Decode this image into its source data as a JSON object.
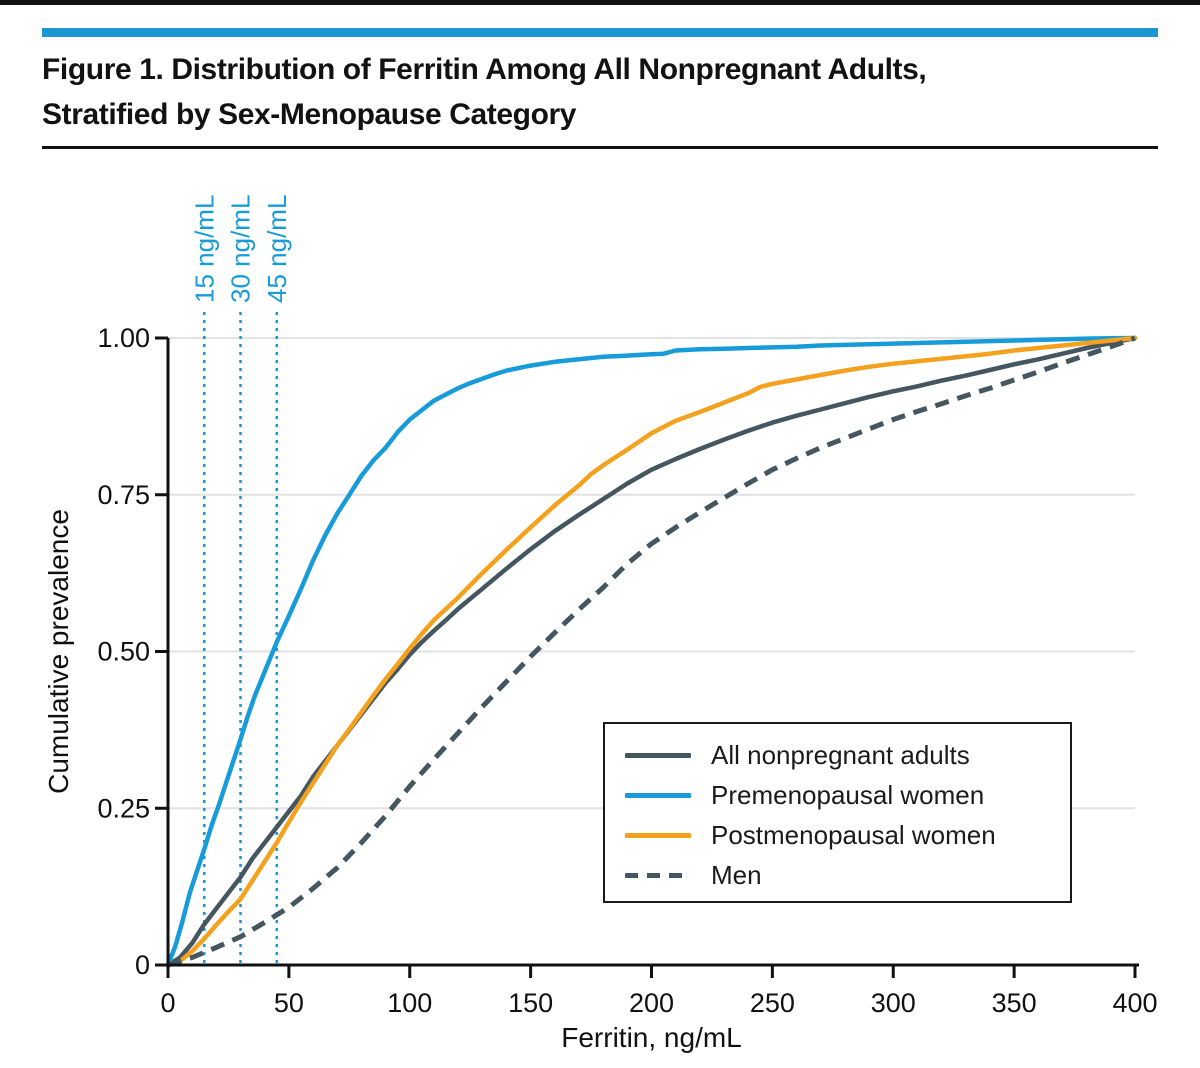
{
  "header": {
    "title_line1": "Figure 1. Distribution of Ferritin Among All Nonpregnant Adults,",
    "title_line2": "Stratified by Sex-Menopause Category"
  },
  "colors": {
    "top_rule": "#121212",
    "accent_bar": "#1B97D1",
    "grid": "#E2E2E2",
    "axis": "#111111",
    "reference_line": "#189CD9"
  },
  "chart_data": {
    "type": "line",
    "title": "Figure 1. Distribution of Ferritin Among All Nonpregnant Adults, Stratified by Sex-Menopause Category",
    "xlabel": "Ferritin, ng/mL",
    "ylabel": "Cumulative prevalence",
    "xlim": [
      0,
      400
    ],
    "ylim": [
      0,
      1.0
    ],
    "x_ticks": [
      0,
      50,
      100,
      150,
      200,
      250,
      300,
      350,
      400
    ],
    "x_tick_labels": [
      "0",
      "50",
      "100",
      "150",
      "200",
      "250",
      "300",
      "350",
      "400"
    ],
    "y_ticks": [
      0,
      0.25,
      0.5,
      0.75,
      1.0
    ],
    "y_tick_labels": [
      "0",
      "0.25",
      "0.50",
      "0.75",
      "1.00"
    ],
    "grid": "horizontal gridlines at y ticks",
    "legend_position": "inside lower right, boxed",
    "reference_lines": [
      {
        "x": 15,
        "label": "15 ng/mL"
      },
      {
        "x": 30,
        "label": "30 ng/mL"
      },
      {
        "x": 45,
        "label": "45 ng/mL"
      }
    ],
    "series": [
      {
        "name": "All nonpregnant adults",
        "color": "#44565F",
        "style": "solid",
        "points": [
          [
            0,
            0
          ],
          [
            5,
            0.012
          ],
          [
            10,
            0.035
          ],
          [
            15,
            0.065
          ],
          [
            20,
            0.09
          ],
          [
            25,
            0.115
          ],
          [
            30,
            0.14
          ],
          [
            35,
            0.17
          ],
          [
            40,
            0.195
          ],
          [
            45,
            0.22
          ],
          [
            50,
            0.245
          ],
          [
            55,
            0.27
          ],
          [
            60,
            0.3
          ],
          [
            65,
            0.325
          ],
          [
            70,
            0.35
          ],
          [
            75,
            0.375
          ],
          [
            80,
            0.4
          ],
          [
            85,
            0.425
          ],
          [
            90,
            0.45
          ],
          [
            95,
            0.472
          ],
          [
            100,
            0.495
          ],
          [
            105,
            0.515
          ],
          [
            110,
            0.533
          ],
          [
            115,
            0.55
          ],
          [
            120,
            0.568
          ],
          [
            130,
            0.6
          ],
          [
            140,
            0.632
          ],
          [
            150,
            0.663
          ],
          [
            160,
            0.692
          ],
          [
            170,
            0.718
          ],
          [
            180,
            0.743
          ],
          [
            190,
            0.768
          ],
          [
            200,
            0.79
          ],
          [
            210,
            0.807
          ],
          [
            220,
            0.823
          ],
          [
            230,
            0.838
          ],
          [
            240,
            0.852
          ],
          [
            250,
            0.865
          ],
          [
            260,
            0.876
          ],
          [
            270,
            0.886
          ],
          [
            280,
            0.896
          ],
          [
            290,
            0.906
          ],
          [
            300,
            0.915
          ],
          [
            310,
            0.923
          ],
          [
            320,
            0.932
          ],
          [
            330,
            0.94
          ],
          [
            340,
            0.949
          ],
          [
            350,
            0.958
          ],
          [
            360,
            0.966
          ],
          [
            370,
            0.975
          ],
          [
            380,
            0.984
          ],
          [
            390,
            0.992
          ],
          [
            400,
            1
          ]
        ]
      },
      {
        "name": "Premenopausal women",
        "color": "#189CD9",
        "style": "solid",
        "points": [
          [
            0,
            0
          ],
          [
            3,
            0.03
          ],
          [
            6,
            0.07
          ],
          [
            9,
            0.115
          ],
          [
            12,
            0.15
          ],
          [
            15,
            0.185
          ],
          [
            18,
            0.222
          ],
          [
            21,
            0.255
          ],
          [
            24,
            0.29
          ],
          [
            27,
            0.325
          ],
          [
            30,
            0.36
          ],
          [
            33,
            0.397
          ],
          [
            36,
            0.43
          ],
          [
            40,
            0.468
          ],
          [
            45,
            0.515
          ],
          [
            50,
            0.557
          ],
          [
            55,
            0.6
          ],
          [
            60,
            0.645
          ],
          [
            65,
            0.685
          ],
          [
            70,
            0.72
          ],
          [
            75,
            0.75
          ],
          [
            80,
            0.78
          ],
          [
            85,
            0.805
          ],
          [
            90,
            0.825
          ],
          [
            95,
            0.85
          ],
          [
            100,
            0.87
          ],
          [
            105,
            0.885
          ],
          [
            110,
            0.9
          ],
          [
            115,
            0.91
          ],
          [
            120,
            0.92
          ],
          [
            125,
            0.928
          ],
          [
            130,
            0.935
          ],
          [
            135,
            0.942
          ],
          [
            140,
            0.948
          ],
          [
            145,
            0.952
          ],
          [
            150,
            0.956
          ],
          [
            160,
            0.962
          ],
          [
            170,
            0.966
          ],
          [
            180,
            0.97
          ],
          [
            190,
            0.972
          ],
          [
            200,
            0.974
          ],
          [
            205,
            0.975
          ],
          [
            210,
            0.98
          ],
          [
            220,
            0.982
          ],
          [
            230,
            0.983
          ],
          [
            240,
            0.984
          ],
          [
            250,
            0.985
          ],
          [
            260,
            0.986
          ],
          [
            270,
            0.988
          ],
          [
            280,
            0.989
          ],
          [
            290,
            0.99
          ],
          [
            300,
            0.991
          ],
          [
            310,
            0.992
          ],
          [
            320,
            0.993
          ],
          [
            330,
            0.994
          ],
          [
            340,
            0.995
          ],
          [
            350,
            0.996
          ],
          [
            360,
            0.997
          ],
          [
            370,
            0.998
          ],
          [
            380,
            0.999
          ],
          [
            390,
            0.9995
          ],
          [
            400,
            1
          ]
        ]
      },
      {
        "name": "Postmenopausal women",
        "color": "#F4A11D",
        "style": "solid",
        "points": [
          [
            0,
            0
          ],
          [
            5,
            0.006
          ],
          [
            10,
            0.022
          ],
          [
            15,
            0.042
          ],
          [
            20,
            0.064
          ],
          [
            25,
            0.085
          ],
          [
            30,
            0.105
          ],
          [
            35,
            0.135
          ],
          [
            40,
            0.165
          ],
          [
            45,
            0.195
          ],
          [
            50,
            0.228
          ],
          [
            55,
            0.26
          ],
          [
            60,
            0.29
          ],
          [
            65,
            0.32
          ],
          [
            70,
            0.35
          ],
          [
            75,
            0.376
          ],
          [
            80,
            0.403
          ],
          [
            85,
            0.43
          ],
          [
            90,
            0.456
          ],
          [
            95,
            0.48
          ],
          [
            100,
            0.505
          ],
          [
            105,
            0.528
          ],
          [
            110,
            0.55
          ],
          [
            115,
            0.568
          ],
          [
            120,
            0.586
          ],
          [
            130,
            0.625
          ],
          [
            140,
            0.662
          ],
          [
            150,
            0.698
          ],
          [
            160,
            0.733
          ],
          [
            170,
            0.765
          ],
          [
            175,
            0.783
          ],
          [
            180,
            0.797
          ],
          [
            190,
            0.822
          ],
          [
            200,
            0.848
          ],
          [
            210,
            0.868
          ],
          [
            220,
            0.882
          ],
          [
            230,
            0.897
          ],
          [
            240,
            0.912
          ],
          [
            245,
            0.922
          ],
          [
            250,
            0.927
          ],
          [
            260,
            0.934
          ],
          [
            270,
            0.941
          ],
          [
            280,
            0.948
          ],
          [
            290,
            0.954
          ],
          [
            300,
            0.959
          ],
          [
            310,
            0.963
          ],
          [
            320,
            0.967
          ],
          [
            330,
            0.971
          ],
          [
            340,
            0.975
          ],
          [
            350,
            0.98
          ],
          [
            360,
            0.984
          ],
          [
            370,
            0.988
          ],
          [
            380,
            0.992
          ],
          [
            390,
            0.996
          ],
          [
            400,
            1
          ]
        ]
      },
      {
        "name": "Men",
        "color": "#44565F",
        "style": "dashed",
        "points": [
          [
            0,
            0
          ],
          [
            10,
            0.012
          ],
          [
            20,
            0.028
          ],
          [
            30,
            0.045
          ],
          [
            40,
            0.068
          ],
          [
            50,
            0.092
          ],
          [
            60,
            0.122
          ],
          [
            70,
            0.155
          ],
          [
            80,
            0.195
          ],
          [
            90,
            0.238
          ],
          [
            100,
            0.285
          ],
          [
            110,
            0.328
          ],
          [
            120,
            0.37
          ],
          [
            130,
            0.412
          ],
          [
            140,
            0.452
          ],
          [
            150,
            0.492
          ],
          [
            160,
            0.53
          ],
          [
            170,
            0.567
          ],
          [
            180,
            0.602
          ],
          [
            190,
            0.64
          ],
          [
            200,
            0.672
          ],
          [
            210,
            0.698
          ],
          [
            220,
            0.722
          ],
          [
            230,
            0.745
          ],
          [
            240,
            0.768
          ],
          [
            250,
            0.79
          ],
          [
            260,
            0.808
          ],
          [
            270,
            0.825
          ],
          [
            280,
            0.84
          ],
          [
            290,
            0.855
          ],
          [
            300,
            0.87
          ],
          [
            310,
            0.883
          ],
          [
            320,
            0.895
          ],
          [
            330,
            0.908
          ],
          [
            340,
            0.92
          ],
          [
            350,
            0.933
          ],
          [
            360,
            0.946
          ],
          [
            370,
            0.96
          ],
          [
            380,
            0.973
          ],
          [
            390,
            0.986
          ],
          [
            400,
            1
          ]
        ]
      }
    ]
  }
}
